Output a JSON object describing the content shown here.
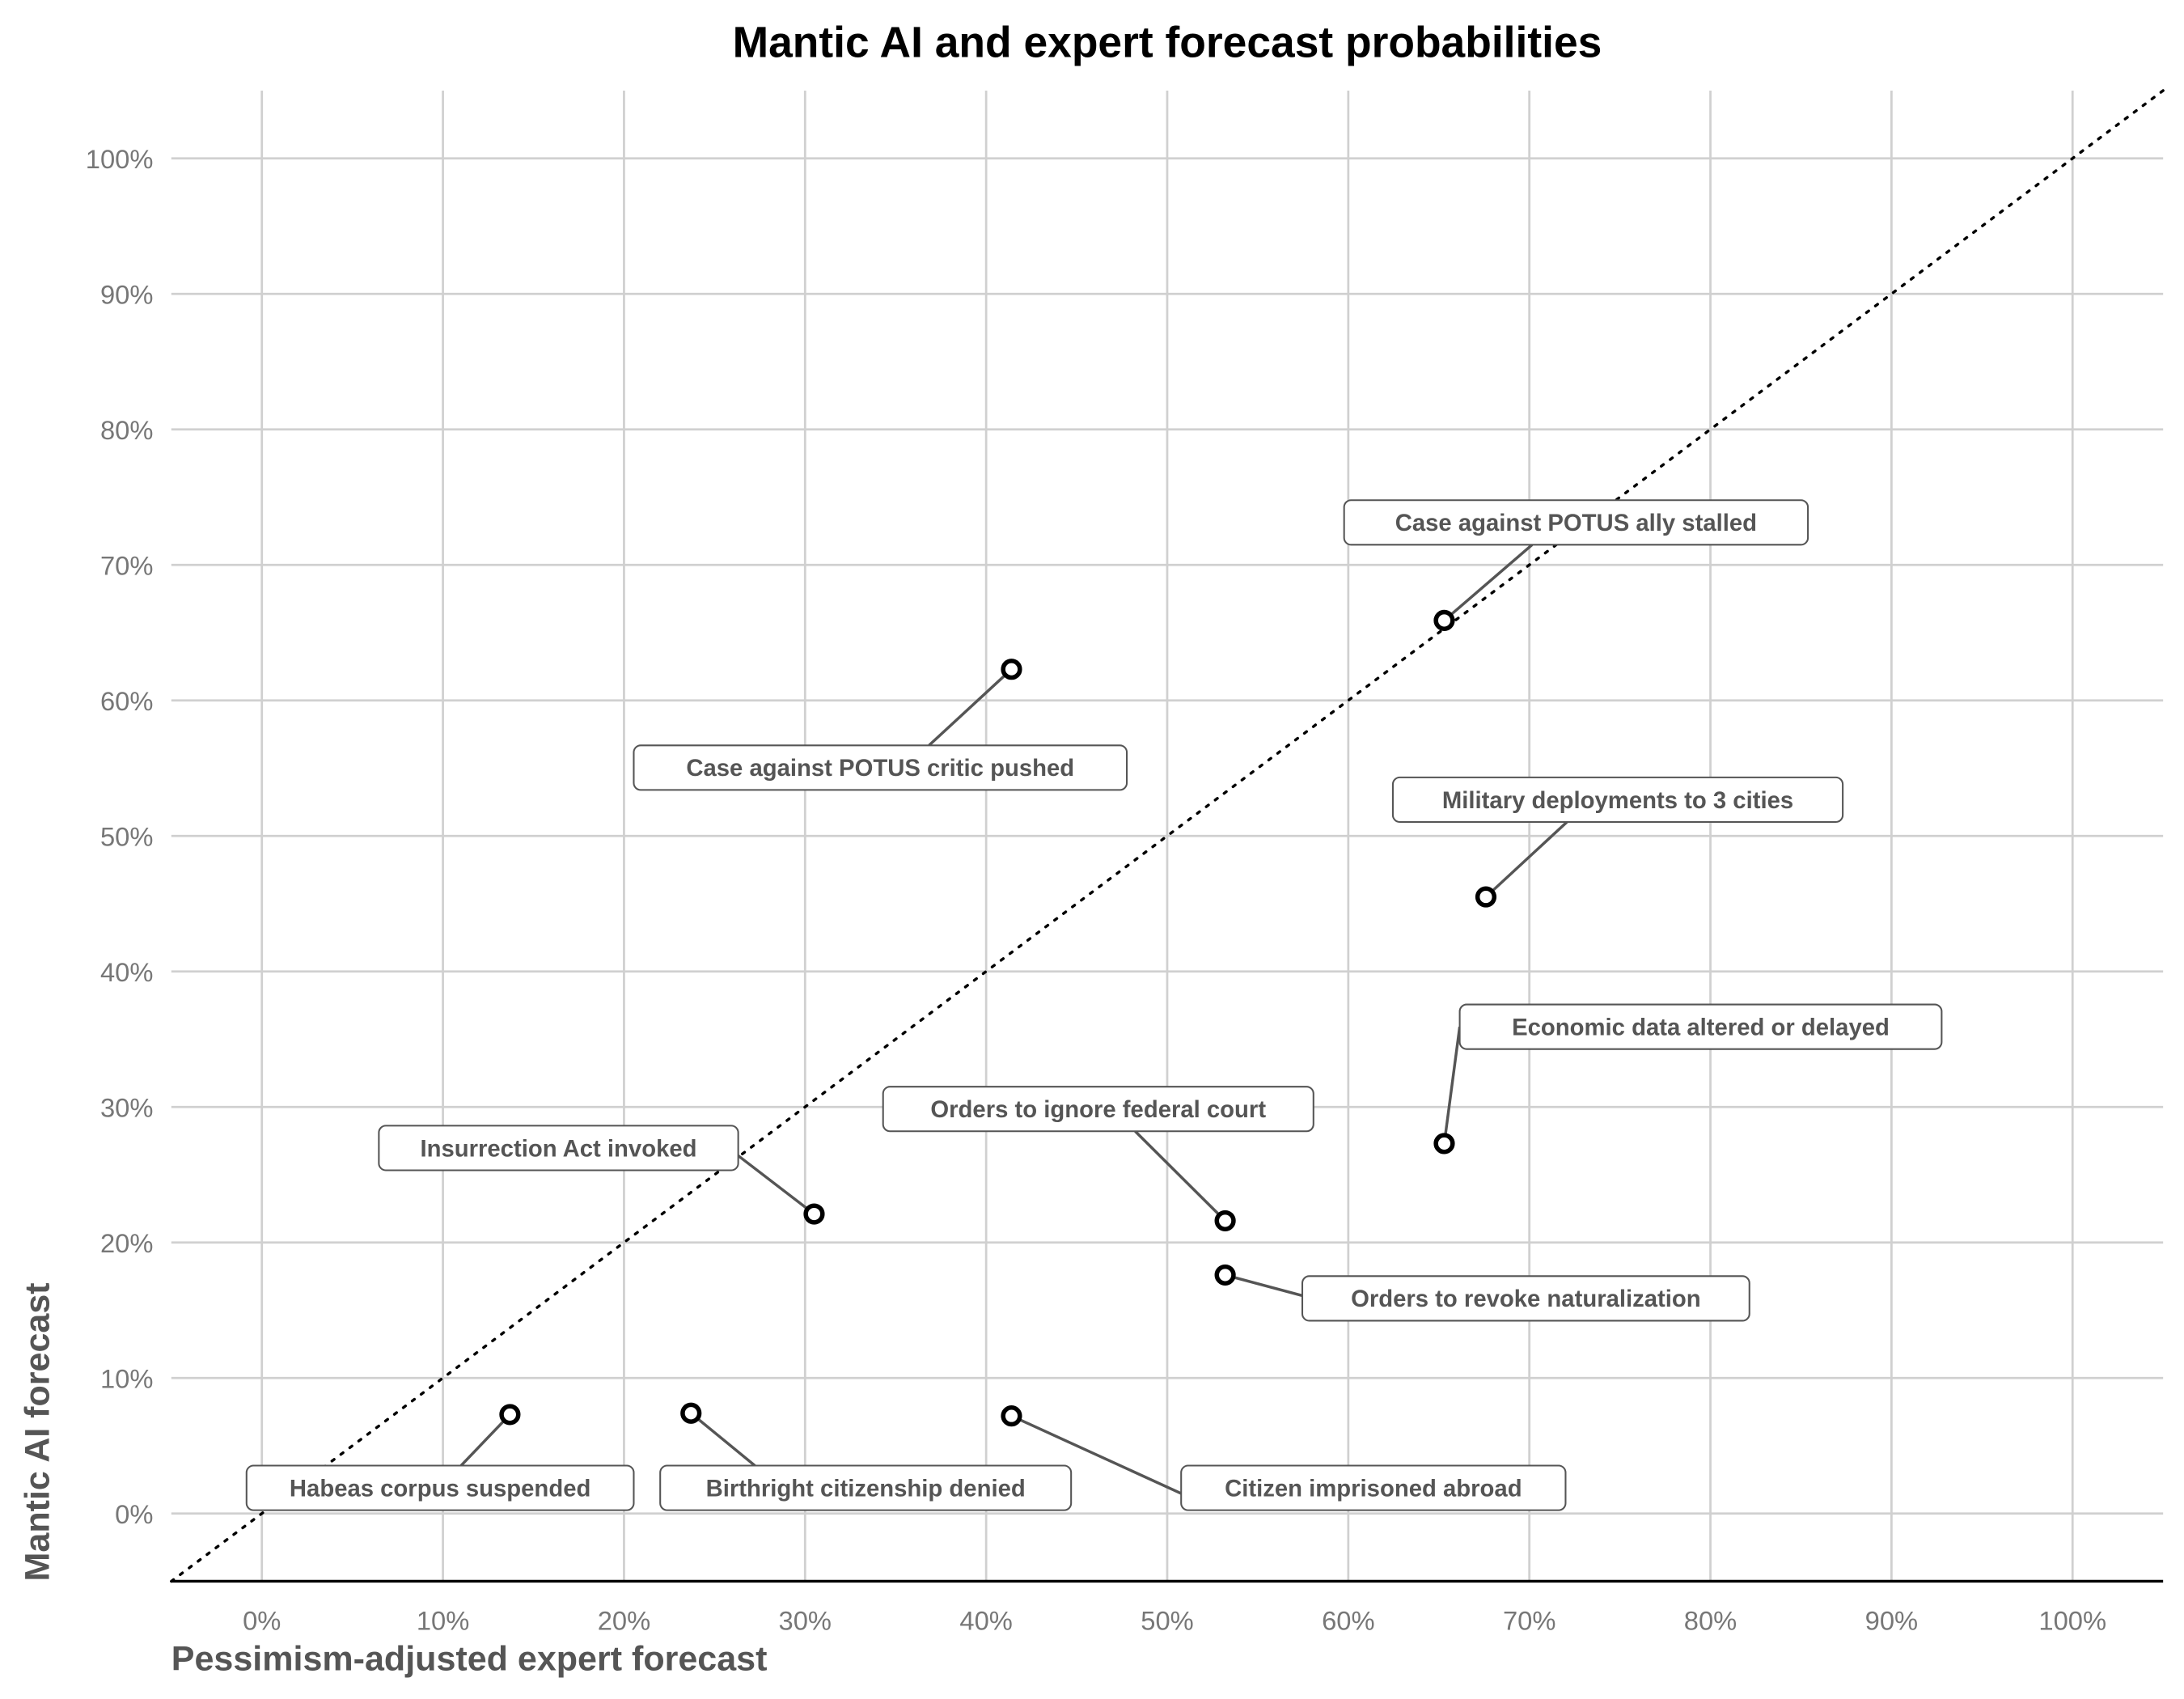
{
  "chart_data": {
    "type": "scatter",
    "title": "Mantic AI and expert forecast probabilities",
    "xlabel": "Pessimism-adjusted expert forecast",
    "ylabel": "Mantic AI forecast",
    "xlim": [
      -5,
      105
    ],
    "ylim": [
      -5,
      105
    ],
    "grid": true,
    "reference_line": "y = x (dotted)",
    "x_ticks": [
      "0%",
      "10%",
      "20%",
      "30%",
      "40%",
      "50%",
      "60%",
      "70%",
      "80%",
      "90%",
      "100%"
    ],
    "y_ticks": [
      "0%",
      "10%",
      "20%",
      "30%",
      "40%",
      "50%",
      "60%",
      "70%",
      "80%",
      "90%",
      "100%"
    ],
    "points": [
      {
        "label": "Case against POTUS ally stalled",
        "x": 65.3,
        "y": 65.9
      },
      {
        "label": "Case against POTUS critic pushed",
        "x": 41.4,
        "y": 62.3
      },
      {
        "label": "Military deployments to 3 cities",
        "x": 67.6,
        "y": 45.5
      },
      {
        "label": "Economic data altered or delayed",
        "x": 65.3,
        "y": 27.3
      },
      {
        "label": "Orders to ignore federal court",
        "x": 53.2,
        "y": 21.6
      },
      {
        "label": "Insurrection Act invoked",
        "x": 30.5,
        "y": 22.1
      },
      {
        "label": "Orders to revoke naturalization",
        "x": 53.2,
        "y": 17.6
      },
      {
        "label": "Habeas corpus suspended",
        "x": 13.7,
        "y": 7.3
      },
      {
        "label": "Birthright citizenship denied",
        "x": 23.7,
        "y": 7.4
      },
      {
        "label": "Citizen imprisoned abroad",
        "x": 41.4,
        "y": 7.2
      }
    ]
  }
}
